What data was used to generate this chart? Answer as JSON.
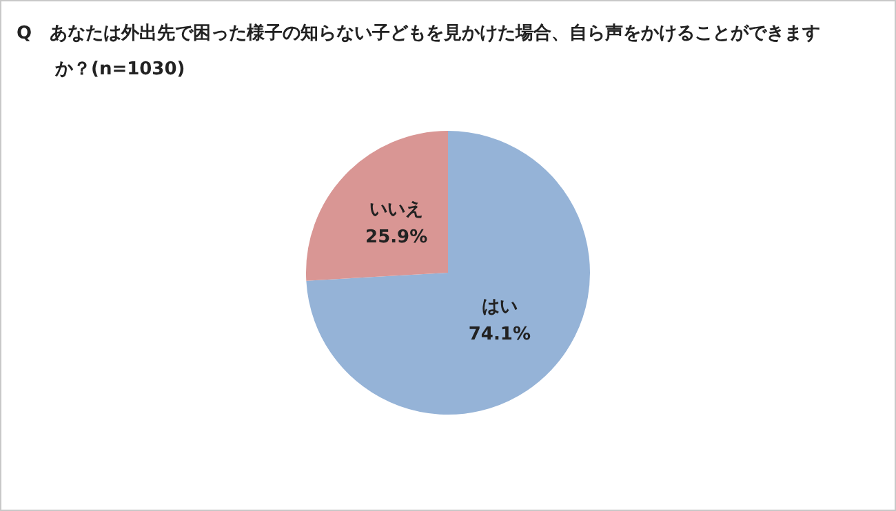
{
  "chart_data": {
    "type": "pie",
    "title": "Q　あなたは外出先で困った様子の知らない子どもを見かけた場合、自ら声をかけることができますか？(n=1030)",
    "categories": [
      "はい",
      "いいえ"
    ],
    "values": [
      74.1,
      25.9
    ],
    "value_labels": [
      "74.1%",
      "25.9%"
    ],
    "colors": [
      "#95b3d7",
      "#d99694"
    ],
    "legend": false
  }
}
